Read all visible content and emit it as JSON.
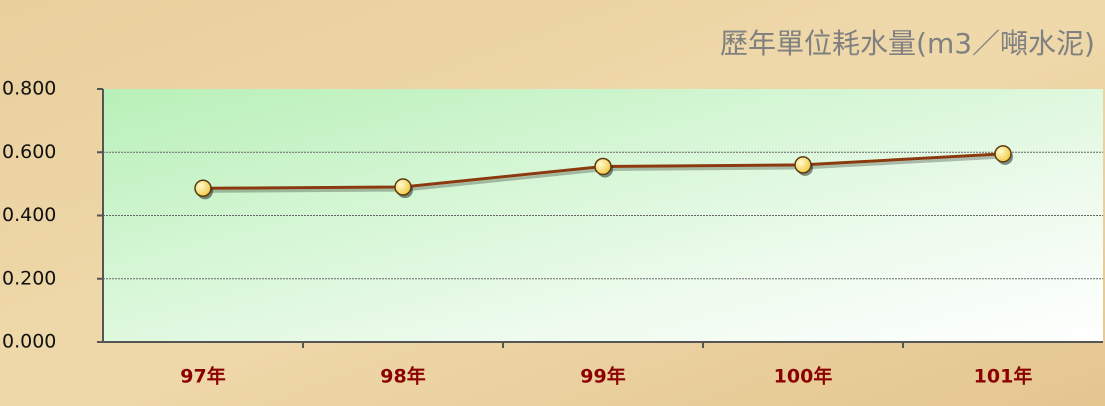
{
  "chart_data": {
    "type": "line",
    "title": "歷年單位耗水量(m3／噸水泥)",
    "categories": [
      "97年",
      "98年",
      "99年",
      "100年",
      "101年"
    ],
    "series": [
      {
        "name": "單位耗水量",
        "color": "#8b3a10",
        "values": [
          0.486,
          0.49,
          0.555,
          0.56,
          0.595
        ]
      }
    ],
    "ylim": [
      0,
      0.8
    ],
    "yticks": [
      {
        "value": 0,
        "label": "0.000"
      },
      {
        "value": 0.2,
        "label": "0.200"
      },
      {
        "value": 0.4,
        "label": "0.400"
      },
      {
        "value": 0.6,
        "label": "0.600"
      },
      {
        "value": 0.8,
        "label": "0.800"
      }
    ],
    "grid": true
  }
}
